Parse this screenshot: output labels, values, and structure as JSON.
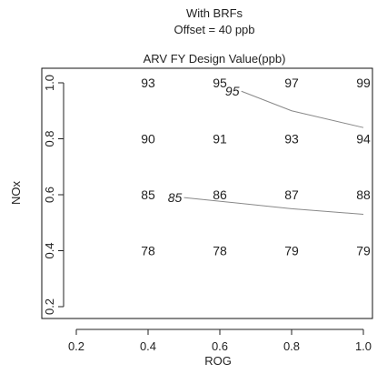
{
  "chart_data": {
    "type": "contour",
    "title": "With BRFs",
    "subtitle": "Offset = 40 ppb",
    "plot_title": "ARV FY Design Value(ppb)",
    "xlabel": "ROG",
    "ylabel": "NOx",
    "xlim": [
      0.2,
      1.0
    ],
    "ylim": [
      0.2,
      1.0
    ],
    "x_ticks": [
      "0.2",
      "0.4",
      "0.6",
      "0.8",
      "1.0"
    ],
    "y_ticks": [
      "0.2",
      "0.4",
      "0.6",
      "0.8",
      "1.0"
    ],
    "grid": false,
    "grid_points": [
      {
        "x": 0.4,
        "y": 1.0,
        "label": "93"
      },
      {
        "x": 0.6,
        "y": 1.0,
        "label": "95"
      },
      {
        "x": 0.8,
        "y": 1.0,
        "label": "97"
      },
      {
        "x": 1.0,
        "y": 1.0,
        "label": "99"
      },
      {
        "x": 0.4,
        "y": 0.8,
        "label": "90"
      },
      {
        "x": 0.6,
        "y": 0.8,
        "label": "91"
      },
      {
        "x": 0.8,
        "y": 0.8,
        "label": "93"
      },
      {
        "x": 1.0,
        "y": 0.8,
        "label": "94"
      },
      {
        "x": 0.4,
        "y": 0.6,
        "label": "85"
      },
      {
        "x": 0.6,
        "y": 0.6,
        "label": "86"
      },
      {
        "x": 0.8,
        "y": 0.6,
        "label": "87"
      },
      {
        "x": 1.0,
        "y": 0.6,
        "label": "88"
      },
      {
        "x": 0.4,
        "y": 0.4,
        "label": "78"
      },
      {
        "x": 0.6,
        "y": 0.4,
        "label": "78"
      },
      {
        "x": 0.8,
        "y": 0.4,
        "label": "79"
      },
      {
        "x": 1.0,
        "y": 0.4,
        "label": "79"
      }
    ],
    "contours": [
      {
        "level": "95",
        "points": [
          [
            0.66,
            0.97
          ],
          [
            0.8,
            0.9
          ],
          [
            1.0,
            0.84
          ]
        ]
      },
      {
        "level": "85",
        "points": [
          [
            0.5,
            0.59
          ],
          [
            0.8,
            0.55
          ],
          [
            1.0,
            0.53
          ]
        ]
      }
    ],
    "colors": {
      "text": "#222222",
      "axis": "#222222",
      "contour": "#888888",
      "frame": "#111111"
    }
  }
}
